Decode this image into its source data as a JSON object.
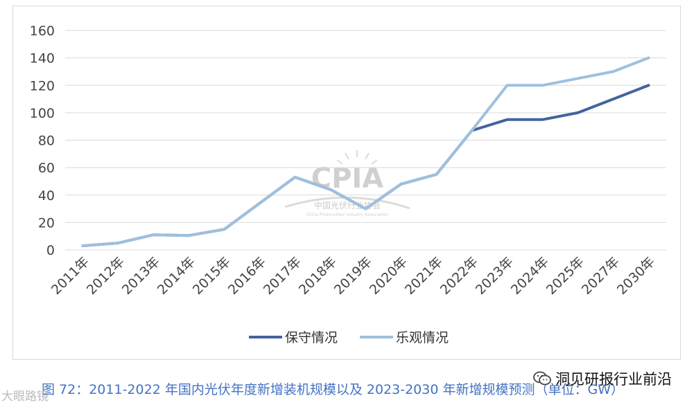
{
  "chart_data": {
    "type": "line",
    "categories": [
      "2011年",
      "2012年",
      "2013年",
      "2014年",
      "2015年",
      "2016年",
      "2017年",
      "2018年",
      "2019年",
      "2020年",
      "2021年",
      "2022年",
      "2023年",
      "2024年",
      "2025年",
      "2027年",
      "2030年"
    ],
    "series": [
      {
        "name": "保守情况",
        "color": "#44639e",
        "values": [
          3,
          5,
          11,
          10.5,
          15,
          34,
          53,
          44,
          30,
          48,
          55,
          87,
          95,
          95,
          100,
          110,
          120
        ]
      },
      {
        "name": "乐观情况",
        "color": "#9fc0dd",
        "values": [
          3,
          5,
          11,
          10.5,
          15,
          34,
          53,
          44,
          30,
          48,
          55,
          87,
          120,
          120,
          125,
          130,
          140
        ]
      }
    ],
    "ylim": [
      0,
      160
    ],
    "yticks": [
      0,
      20,
      40,
      60,
      80,
      100,
      120,
      140,
      160
    ],
    "grid": true,
    "legend_position": "bottom-center"
  },
  "watermark": {
    "logo": "CPIA",
    "name_cn": "中国光伏行业协会",
    "name_en": "China Photovoltaic Industry Association"
  },
  "caption": "图 72：2011-2022 年国内光伏年度新增装机规模以及 2023-2030 年新增规模预测（单位：GW）",
  "wechat_tag": "洞见研报行业前沿",
  "corner_mark": "大眼路镜"
}
